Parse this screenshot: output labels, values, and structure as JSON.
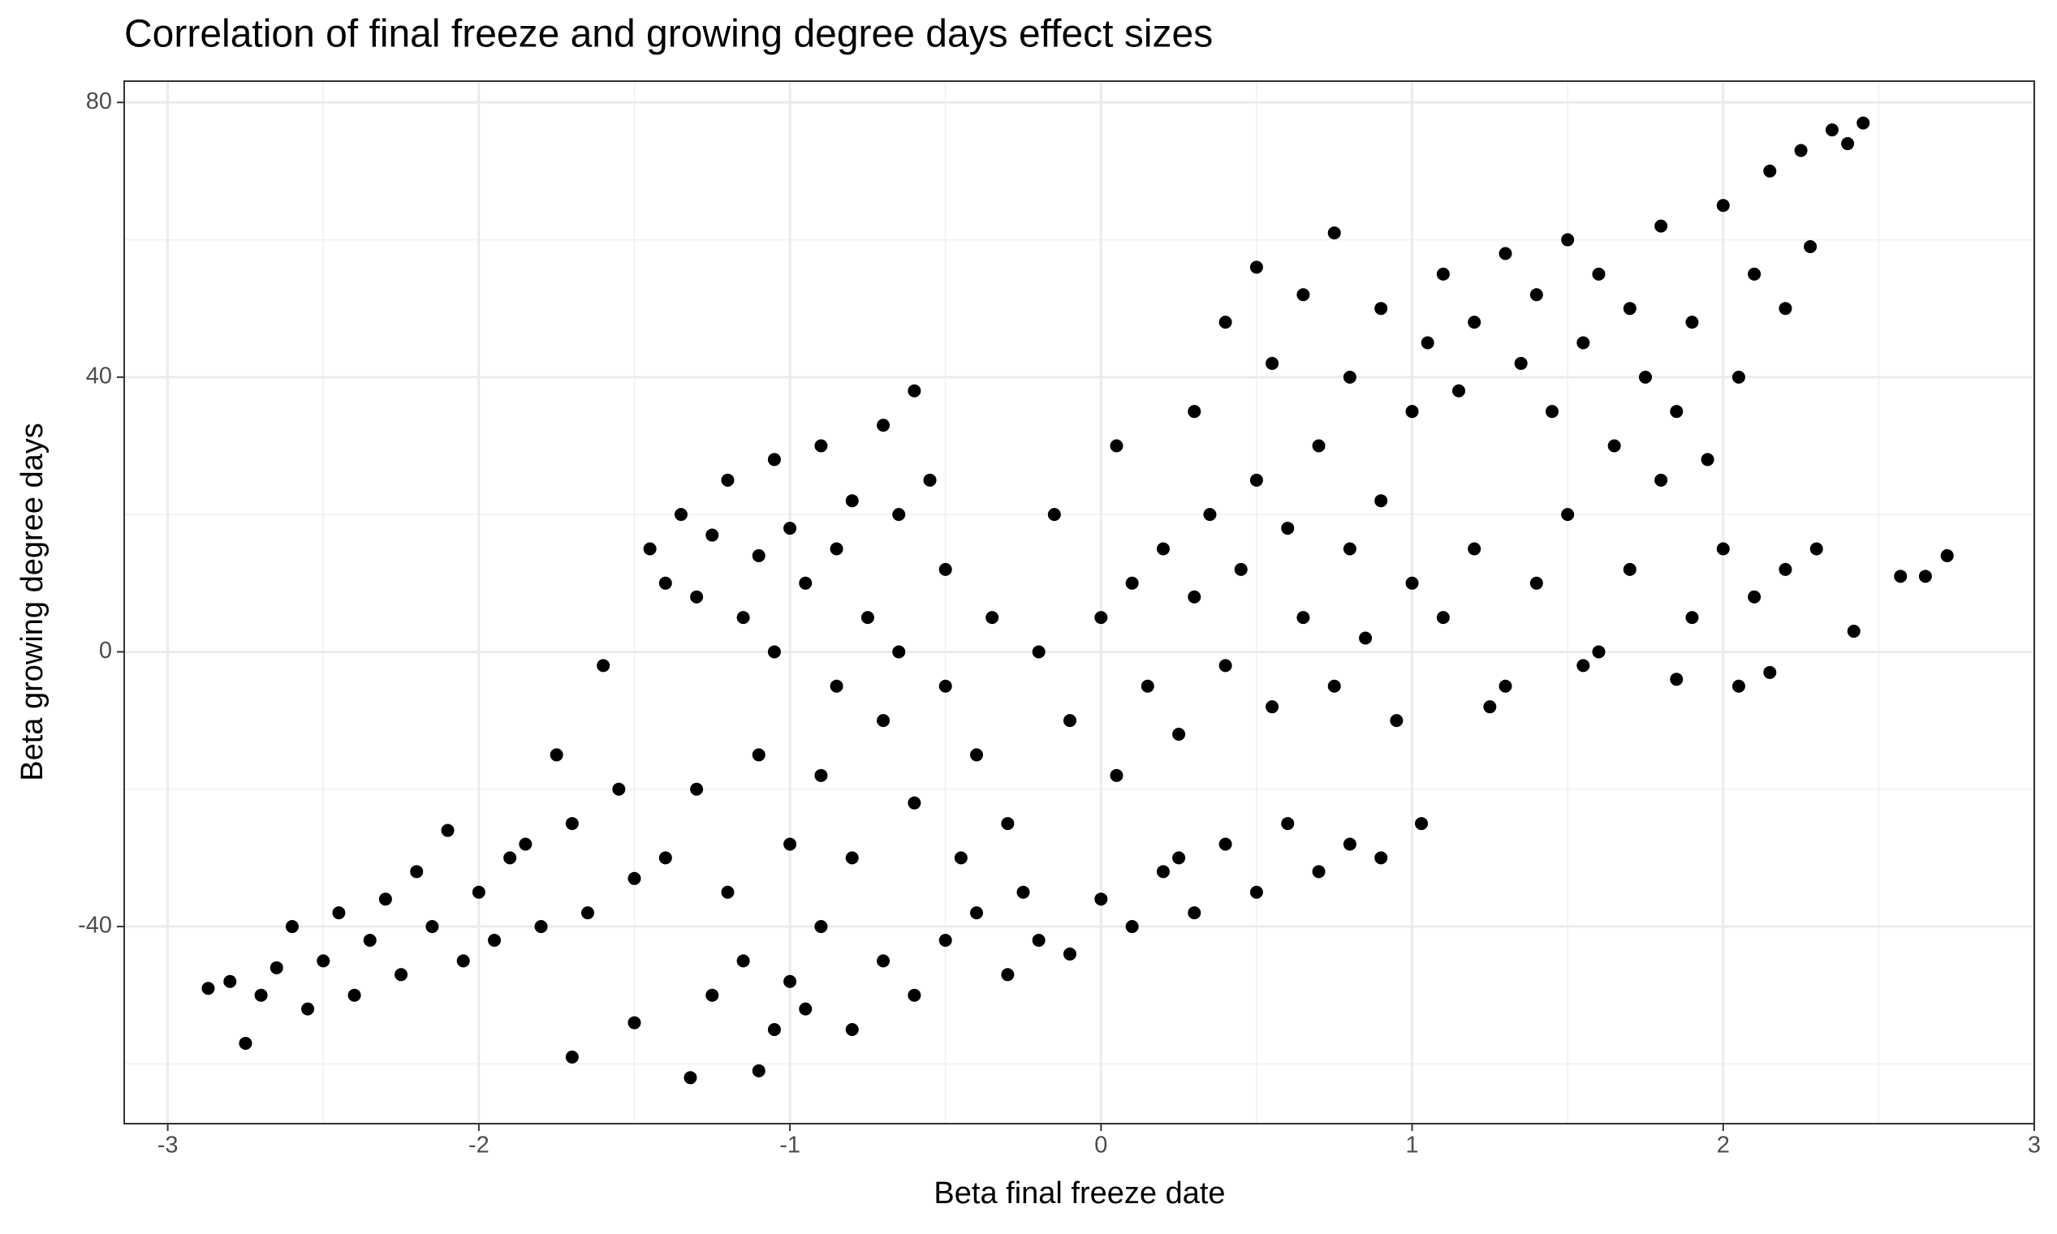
{
  "chart_data": {
    "type": "scatter",
    "title": "Correlation of final freeze and growing degree days effect sizes",
    "x_label": "Beta final freeze date",
    "y_label": "Beta growing degree days",
    "color": "#000000",
    "grid": true,
    "xlim": [
      -3.14,
      3.0
    ],
    "xticks": [
      -3,
      -2,
      -1,
      0,
      1,
      2,
      3
    ],
    "x_minor_ticks": [
      -2.5,
      -1.5,
      -0.5,
      0.5,
      1.5,
      2.5
    ],
    "ylim": [
      -68.7,
      83.1
    ],
    "yticks": [
      -40,
      0,
      40,
      80
    ],
    "y_minor_ticks": [
      -60,
      -20,
      20,
      60
    ],
    "x": [
      -2.87,
      -2.8,
      -2.75,
      -2.7,
      -2.65,
      -2.6,
      -2.55,
      -2.5,
      -2.45,
      -2.4,
      -2.35,
      -2.3,
      -2.25,
      -2.2,
      -2.15,
      -2.1,
      -2.05,
      -2.0,
      -1.95,
      -1.9,
      -1.85,
      -1.8,
      -1.75,
      -1.7,
      -1.65,
      -1.6,
      -1.55,
      -1.5,
      -1.45,
      -1.4,
      -1.35,
      -1.3,
      -1.25,
      -1.2,
      -1.15,
      -1.1,
      -1.05,
      -1.0,
      -0.95,
      -0.9,
      -0.85,
      -0.8,
      -0.75,
      -0.7,
      -0.65,
      -0.6,
      -0.55,
      -0.5,
      -1.7,
      -1.5,
      -1.32,
      -1.25,
      -1.15,
      -1.1,
      -1.05,
      -1.0,
      -0.95,
      -0.9,
      -0.8,
      -0.7,
      -0.6,
      -0.5,
      -0.4,
      -0.3,
      -0.2,
      -0.1,
      0.0,
      0.1,
      0.2,
      0.3,
      0.4,
      0.5,
      0.6,
      0.7,
      0.8,
      0.9,
      1.03,
      -1.4,
      -1.3,
      -1.2,
      -1.1,
      -1.0,
      -0.9,
      -0.8,
      -0.7,
      -0.6,
      -0.5,
      -0.4,
      -0.3,
      -0.2,
      -0.1,
      0.0,
      0.05,
      0.1,
      0.15,
      0.2,
      0.25,
      0.3,
      0.35,
      0.4,
      0.45,
      0.5,
      0.55,
      0.6,
      0.65,
      0.7,
      0.75,
      0.8,
      0.85,
      0.9,
      0.95,
      1.0,
      -0.35,
      -0.25,
      -0.15,
      0.05,
      0.25,
      -0.45,
      -0.65,
      -0.85,
      -1.05,
      0.3,
      0.4,
      0.5,
      0.55,
      0.65,
      0.75,
      0.8,
      0.9,
      1.0,
      1.05,
      1.1,
      1.15,
      1.2,
      1.3,
      1.35,
      1.4,
      1.45,
      1.5,
      1.55,
      1.6,
      1.65,
      1.7,
      1.75,
      1.8,
      1.85,
      1.9,
      1.95,
      2.0,
      2.05,
      2.1,
      2.15,
      2.2,
      2.25,
      2.28,
      2.35,
      2.45,
      2.4,
      1.1,
      1.2,
      1.3,
      1.4,
      1.5,
      1.6,
      1.7,
      1.8,
      1.9,
      2.0,
      2.05,
      2.1,
      2.15,
      2.2,
      2.3,
      2.42,
      2.57,
      2.65,
      2.72,
      1.25,
      1.55,
      1.85
    ],
    "y": [
      -49,
      -48,
      -57,
      -50,
      -46,
      -40,
      -52,
      -45,
      -38,
      -50,
      -42,
      -36,
      -47,
      -32,
      -40,
      -26,
      -45,
      -35,
      -42,
      -30,
      -28,
      -40,
      -15,
      -25,
      -38,
      -2,
      -20,
      -33,
      15,
      10,
      20,
      8,
      17,
      25,
      5,
      14,
      28,
      18,
      10,
      30,
      15,
      22,
      5,
      33,
      20,
      38,
      25,
      12,
      -59,
      -54,
      -62,
      -50,
      -45,
      -61,
      -55,
      -48,
      -52,
      -40,
      -55,
      -45,
      -50,
      -42,
      -38,
      -47,
      -42,
      -44,
      -36,
      -40,
      -32,
      -38,
      -28,
      -35,
      -25,
      -32,
      -28,
      -30,
      -25,
      -30,
      -20,
      -35,
      -15,
      -28,
      -18,
      -30,
      -10,
      -22,
      -5,
      -15,
      -25,
      0,
      -10,
      5,
      -18,
      10,
      -5,
      15,
      -12,
      8,
      20,
      -2,
      12,
      25,
      -8,
      18,
      5,
      30,
      -5,
      15,
      2,
      22,
      -10,
      10,
      5,
      -35,
      20,
      30,
      -30,
      -30,
      0,
      -5,
      0,
      35,
      48,
      56,
      42,
      52,
      61,
      40,
      50,
      35,
      45,
      55,
      38,
      48,
      58,
      42,
      52,
      35,
      60,
      45,
      55,
      30,
      50,
      40,
      62,
      35,
      48,
      28,
      65,
      40,
      55,
      70,
      50,
      73,
      59,
      76,
      77,
      74,
      5,
      15,
      -5,
      10,
      20,
      0,
      12,
      25,
      5,
      15,
      -5,
      8,
      -3,
      12,
      15,
      3,
      11,
      11,
      14,
      -8,
      -2,
      -4
    ]
  }
}
